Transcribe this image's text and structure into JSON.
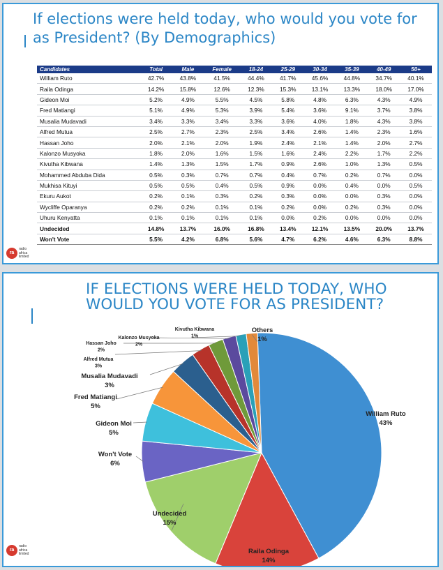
{
  "top_panel": {
    "title": "If elections were held today, who would you vote for as President? (By Demographics)",
    "logo_text": [
      "radio",
      "africa",
      "limited"
    ]
  },
  "bottom_panel": {
    "title_line1": "IF ELECTIONS WERE HELD TODAY, WHO",
    "title_line2": "WOULD YOU VOTE FOR AS PRESIDENT?",
    "logo_text": [
      "radio",
      "africa",
      "limited"
    ]
  },
  "colors": {
    "accent": "#2b86c6",
    "table_header": "#1b3b88",
    "logo": "#d63a2f"
  },
  "chart_data": [
    {
      "type": "table",
      "title": "If elections were held today, who would you vote for as President? (By Demographics)",
      "columns": [
        "Candidates",
        "Total",
        "Male",
        "Female",
        "18-24",
        "25-29",
        "30-34",
        "35-39",
        "40-49",
        "50+"
      ],
      "rows": [
        [
          "William Ruto",
          "42.7%",
          "43.8%",
          "41.5%",
          "44.4%",
          "41.7%",
          "45.6%",
          "44.8%",
          "34.7%",
          "40.1%"
        ],
        [
          "Raila Odinga",
          "14.2%",
          "15.8%",
          "12.6%",
          "12.3%",
          "15.3%",
          "13.1%",
          "13.3%",
          "18.0%",
          "17.0%"
        ],
        [
          "Gideon Moi",
          "5.2%",
          "4.9%",
          "5.5%",
          "4.5%",
          "5.8%",
          "4.8%",
          "6.3%",
          "4.3%",
          "4.9%"
        ],
        [
          "Fred Matiangi",
          "5.1%",
          "4.9%",
          "5.3%",
          "3.9%",
          "5.4%",
          "3.6%",
          "9.1%",
          "3.7%",
          "3.8%"
        ],
        [
          "Musalia Mudavadi",
          "3.4%",
          "3.3%",
          "3.4%",
          "3.3%",
          "3.6%",
          "4.0%",
          "1.8%",
          "4.3%",
          "3.8%"
        ],
        [
          "Alfred Mutua",
          "2.5%",
          "2.7%",
          "2.3%",
          "2.5%",
          "3.4%",
          "2.6%",
          "1.4%",
          "2.3%",
          "1.6%"
        ],
        [
          "Hassan Joho",
          "2.0%",
          "2.1%",
          "2.0%",
          "1.9%",
          "2.4%",
          "2.1%",
          "1.4%",
          "2.0%",
          "2.7%"
        ],
        [
          "Kalonzo Musyoka",
          "1.8%",
          "2.0%",
          "1.6%",
          "1.5%",
          "1.6%",
          "2.4%",
          "2.2%",
          "1.7%",
          "2.2%"
        ],
        [
          "Kivutha Kibwana",
          "1.4%",
          "1.3%",
          "1.5%",
          "1.7%",
          "0.9%",
          "2.6%",
          "1.0%",
          "1.3%",
          "0.5%"
        ],
        [
          "Mohammed Abduba Dida",
          "0.5%",
          "0.3%",
          "0.7%",
          "0.7%",
          "0.4%",
          "0.7%",
          "0.2%",
          "0.7%",
          "0.0%"
        ],
        [
          "Mukhisa Kituyi",
          "0.5%",
          "0.5%",
          "0.4%",
          "0.5%",
          "0.9%",
          "0.0%",
          "0.4%",
          "0.0%",
          "0.5%"
        ],
        [
          "Ekuru Aukot",
          "0.2%",
          "0.1%",
          "0.3%",
          "0.2%",
          "0.3%",
          "0.0%",
          "0.0%",
          "0.3%",
          "0.0%"
        ],
        [
          "Wycliffe Oparanya",
          "0.2%",
          "0.2%",
          "0.1%",
          "0.1%",
          "0.2%",
          "0.0%",
          "0.2%",
          "0.3%",
          "0.0%"
        ],
        [
          "Uhuru Kenyatta",
          "0.1%",
          "0.1%",
          "0.1%",
          "0.1%",
          "0.0%",
          "0.2%",
          "0.0%",
          "0.0%",
          "0.0%"
        ],
        [
          "Undecided",
          "14.8%",
          "13.7%",
          "16.0%",
          "16.8%",
          "13.4%",
          "12.1%",
          "13.5%",
          "20.0%",
          "13.7%"
        ],
        [
          "Won't Vote",
          "5.5%",
          "4.2%",
          "6.8%",
          "5.6%",
          "4.7%",
          "6.2%",
          "4.6%",
          "6.3%",
          "8.8%"
        ]
      ],
      "bold_rows": [
        "Undecided",
        "Won't Vote"
      ]
    },
    {
      "type": "pie",
      "title": "IF ELECTIONS WERE HELD TODAY, WHO WOULD YOU VOTE FOR AS PRESIDENT?",
      "slices": [
        {
          "label": "William Ruto",
          "value": 42.7,
          "display": "43%",
          "color": "#3f8fd2"
        },
        {
          "label": "Raila Odinga",
          "value": 14.2,
          "display": "14%",
          "color": "#d9433b"
        },
        {
          "label": "Undecided",
          "value": 14.8,
          "display": "15%",
          "color": "#9fcf6b"
        },
        {
          "label": "Won't Vote",
          "value": 5.5,
          "display": "6%",
          "color": "#6a64c4"
        },
        {
          "label": "Gideon Moi",
          "value": 5.2,
          "display": "5%",
          "color": "#3ec0dc"
        },
        {
          "label": "Fred Matiangi",
          "value": 5.1,
          "display": "5%",
          "color": "#f7953a"
        },
        {
          "label": "Musalia Mudavadi",
          "value": 3.4,
          "display": "3%",
          "color": "#2b5f8e"
        },
        {
          "label": "Alfred Mutua",
          "value": 2.5,
          "display": "3%",
          "color": "#b7332a"
        },
        {
          "label": "Hassan Joho",
          "value": 2.0,
          "display": "2%",
          "color": "#6f9a3a"
        },
        {
          "label": "Kalonzo Musyoka",
          "value": 1.8,
          "display": "2%",
          "color": "#5b4a9e"
        },
        {
          "label": "Kivutha Kibwana",
          "value": 1.4,
          "display": "1%",
          "color": "#2aa0b8"
        },
        {
          "label": "Others",
          "value": 1.5,
          "display": "1%",
          "color": "#e2893a"
        }
      ]
    }
  ]
}
